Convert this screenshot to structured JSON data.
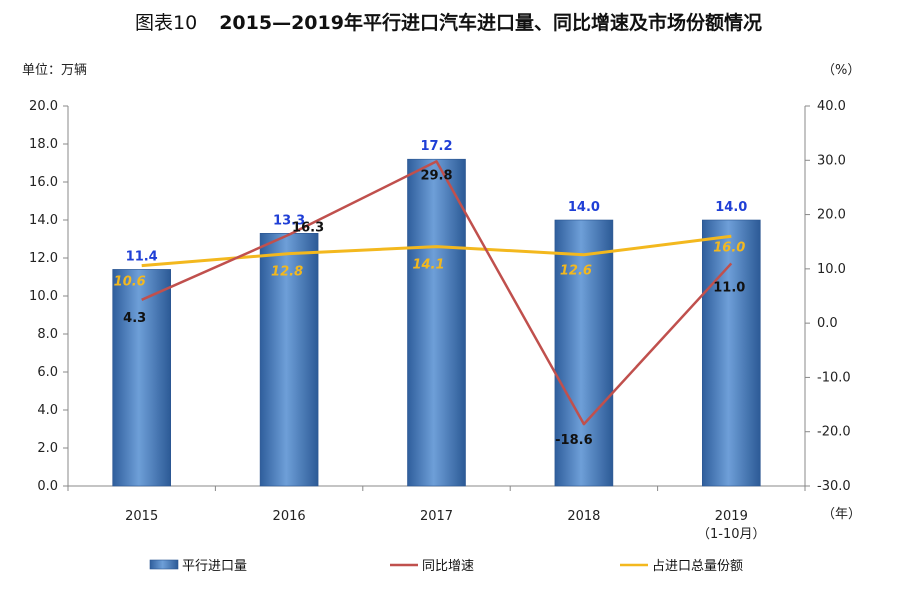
{
  "title_prefix": "图表10",
  "title": "2015—2019年平行进口汽车进口量、同比增速及市场份额情况",
  "left_unit": "单位：万辆",
  "right_unit": "（%）",
  "x_unit": "（年）",
  "colors": {
    "bar": "#4f81bd",
    "growth": "#c0504d",
    "share": "#f3b81e"
  },
  "chart_data": {
    "type": "bar",
    "categories": [
      "2015",
      "2016",
      "2017",
      "2018",
      "2019"
    ],
    "category_sub": [
      "",
      "",
      "",
      "",
      "（1-10月）"
    ],
    "ylim_left": [
      0,
      20
    ],
    "yticks_left": [
      "0.0",
      "2.0",
      "4.0",
      "6.0",
      "8.0",
      "10.0",
      "12.0",
      "14.0",
      "16.0",
      "18.0",
      "20.0"
    ],
    "ylim_right": [
      -30,
      40
    ],
    "yticks_right": [
      "-30.0",
      "-20.0",
      "-10.0",
      "0.0",
      "10.0",
      "20.0",
      "30.0",
      "40.0"
    ],
    "series": [
      {
        "name": "平行进口量",
        "type": "bar",
        "axis": "left",
        "values": [
          11.4,
          13.3,
          17.2,
          14.0,
          14.0
        ],
        "labels": [
          "11.4",
          "13.3",
          "17.2",
          "14.0",
          "14.0"
        ]
      },
      {
        "name": "同比增速",
        "type": "line",
        "axis": "right",
        "values": [
          4.3,
          16.3,
          29.8,
          -18.6,
          11.0
        ],
        "labels": [
          "4.3",
          "16.3",
          "29.8",
          "-18.6",
          "11.0"
        ]
      },
      {
        "name": "占进口总量份额",
        "type": "line",
        "axis": "right",
        "values": [
          10.6,
          12.8,
          14.1,
          12.6,
          16.0
        ],
        "labels": [
          "10.6",
          "12.8",
          "14.1",
          "12.6",
          "16.0"
        ]
      }
    ],
    "legend": "bottom"
  }
}
